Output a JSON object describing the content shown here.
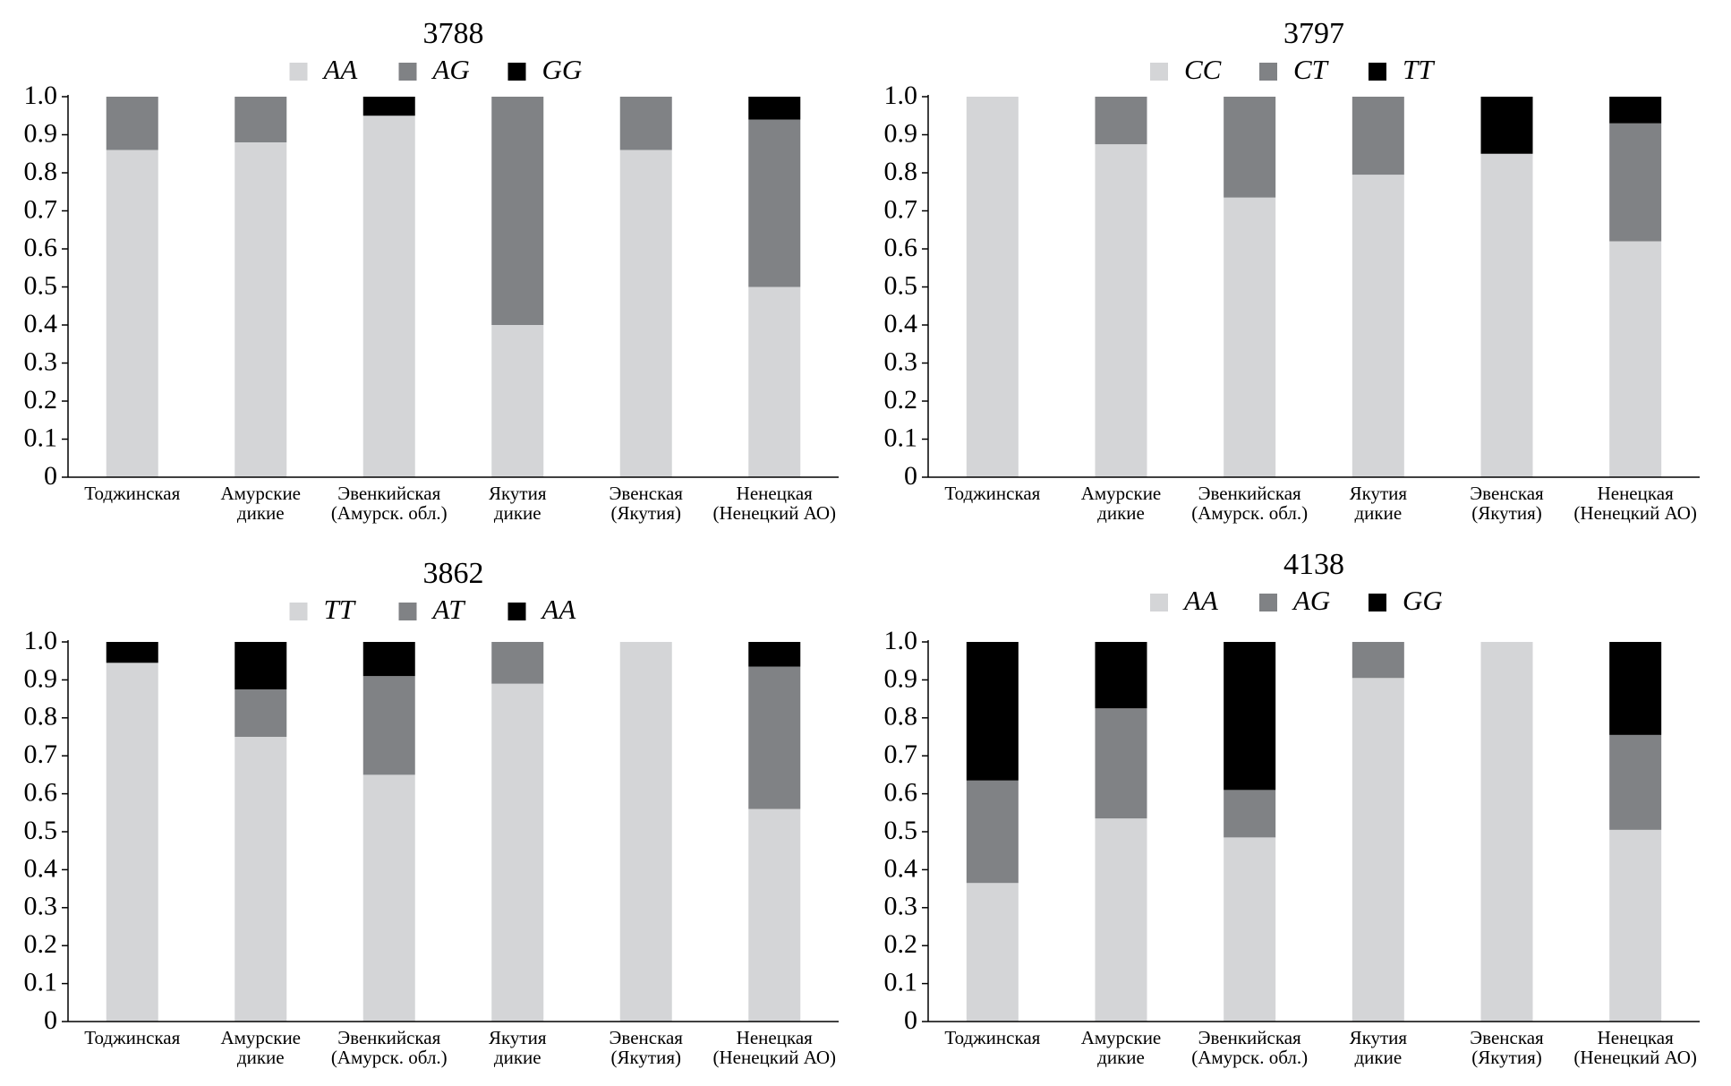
{
  "chart_data": [
    {
      "type": "stacked_bar",
      "title": "3788",
      "categories": [
        [
          "Тоджинская"
        ],
        [
          "Амурские",
          "дикие"
        ],
        [
          "Эвенкийская",
          "(Амурск. обл.)"
        ],
        [
          "Якутия",
          "дикие"
        ],
        [
          "Эвенская",
          "(Якутия)"
        ],
        [
          "Ненецкая",
          "(Ненецкий АО)"
        ]
      ],
      "series": [
        {
          "name": "AA",
          "color": "#d4d5d7",
          "values": [
            0.86,
            0.88,
            0.95,
            0.4,
            0.86,
            0.5
          ]
        },
        {
          "name": "AG",
          "color": "#808285",
          "values": [
            0.14,
            0.12,
            0,
            0.6,
            0.14,
            0.44
          ]
        },
        {
          "name": "GG",
          "color": "#000000",
          "values": [
            0,
            0,
            0.05,
            0,
            0,
            0.06
          ]
        }
      ],
      "ylim": [
        0,
        1
      ],
      "yticks": [
        0,
        0.1,
        0.2,
        0.3,
        0.4,
        0.5,
        0.6,
        0.7,
        0.8,
        0.9,
        {
          "value": 1,
          "label": "1.0"
        }
      ]
    },
    {
      "type": "stacked_bar",
      "title": "3797",
      "categories": [
        [
          "Тоджинская"
        ],
        [
          "Амурские",
          "дикие"
        ],
        [
          "Эвенкийская",
          "(Амурск. обл.)"
        ],
        [
          "Якутия",
          "дикие"
        ],
        [
          "Эвенская",
          "(Якутия)"
        ],
        [
          "Ненецкая",
          "(Ненецкий АО)"
        ]
      ],
      "series": [
        {
          "name": "CC",
          "color": "#d4d5d7",
          "values": [
            1,
            0.875,
            0.735,
            0.795,
            0.85,
            0.62
          ]
        },
        {
          "name": "CT",
          "color": "#808285",
          "values": [
            0,
            0.125,
            0.265,
            0.205,
            0,
            0.31
          ]
        },
        {
          "name": "TT",
          "color": "#000000",
          "values": [
            0,
            0,
            0,
            0,
            0.15,
            0.07
          ]
        }
      ],
      "ylim": [
        0,
        1
      ],
      "yticks": [
        0,
        0.1,
        0.2,
        0.3,
        0.4,
        0.5,
        0.6,
        0.7,
        0.8,
        0.9,
        {
          "value": 1,
          "label": "1.0"
        }
      ]
    },
    {
      "type": "stacked_bar",
      "title": "3862",
      "categories": [
        [
          "Тоджинская"
        ],
        [
          "Амурские",
          "дикие"
        ],
        [
          "Эвенкийская",
          "(Амурск. обл.)"
        ],
        [
          "Якутия",
          "дикие"
        ],
        [
          "Эвенская",
          "(Якутия)"
        ],
        [
          "Ненецкая",
          "(Ненецкий АО)"
        ]
      ],
      "series": [
        {
          "name": "TT",
          "color": "#d4d5d7",
          "values": [
            0.945,
            0.75,
            0.65,
            0.89,
            1,
            0.56
          ]
        },
        {
          "name": "AT",
          "color": "#808285",
          "values": [
            0,
            0.125,
            0.26,
            0.11,
            0,
            0.375
          ]
        },
        {
          "name": "AA",
          "color": "#000000",
          "values": [
            0.055,
            0.125,
            0.09,
            0,
            0,
            0.065
          ]
        }
      ],
      "ylim": [
        0,
        1
      ],
      "yticks": [
        0,
        0.1,
        0.2,
        0.3,
        0.4,
        0.5,
        0.6,
        0.7,
        0.8,
        0.9,
        {
          "value": 1,
          "label": "1.0"
        }
      ]
    },
    {
      "type": "stacked_bar",
      "title": "4138",
      "categories": [
        [
          "Тоджинская"
        ],
        [
          "Амурские",
          "дикие"
        ],
        [
          "Эвенкийская",
          "(Амурск. обл.)"
        ],
        [
          "Якутия",
          "дикие"
        ],
        [
          "Эвенская",
          "(Якутия)"
        ],
        [
          "Ненецкая",
          "(Ненецкий АО)"
        ]
      ],
      "series": [
        {
          "name": "AA",
          "color": "#d4d5d7",
          "values": [
            0.365,
            0.535,
            0.485,
            0.905,
            1,
            0.505
          ]
        },
        {
          "name": "AG",
          "color": "#808285",
          "values": [
            0.27,
            0.29,
            0.125,
            0.095,
            0,
            0.25
          ]
        },
        {
          "name": "GG",
          "color": "#000000",
          "values": [
            0.365,
            0.175,
            0.39,
            0,
            0,
            0.245
          ]
        }
      ],
      "ylim": [
        0,
        1
      ],
      "yticks": [
        0,
        0.1,
        0.2,
        0.3,
        0.4,
        0.5,
        0.6,
        0.7,
        0.8,
        0.9,
        {
          "value": 1,
          "label": "1.0"
        }
      ]
    }
  ]
}
